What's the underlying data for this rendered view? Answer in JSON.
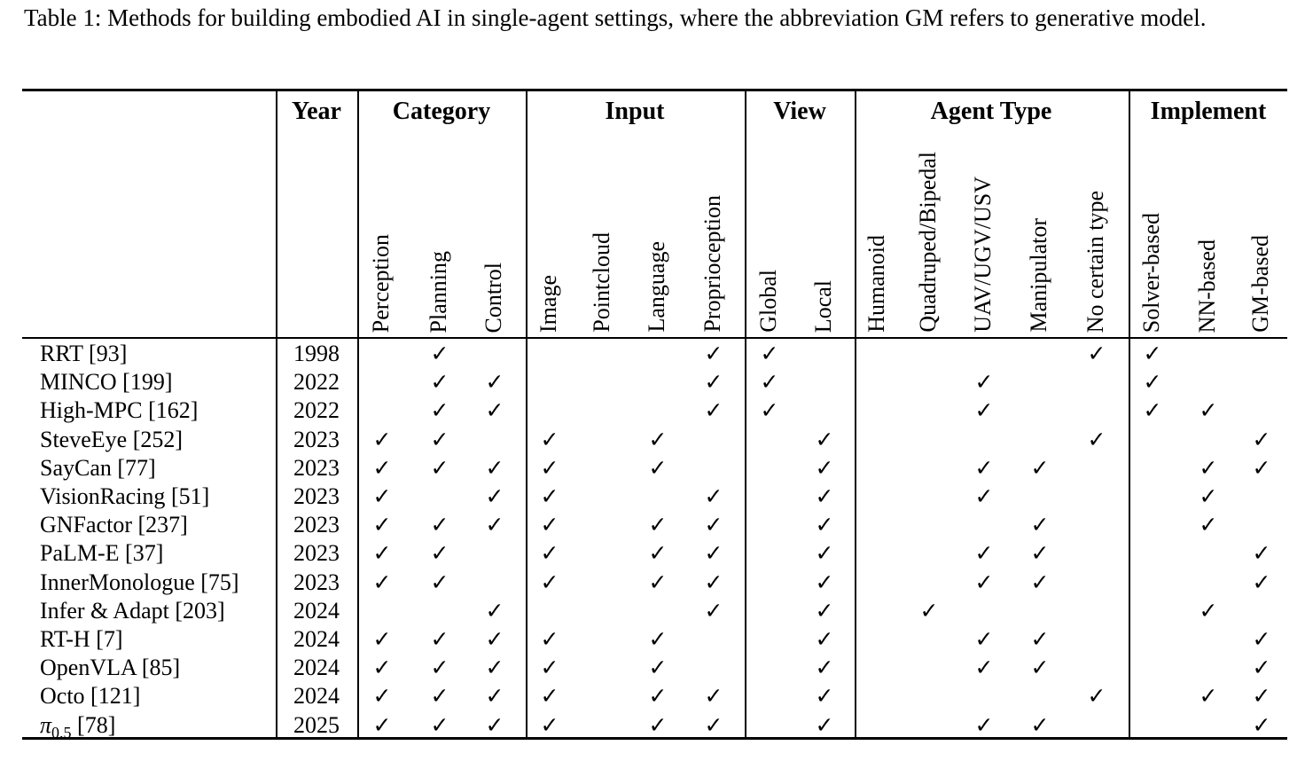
{
  "caption": "Table 1: Methods for building embodied AI in single-agent settings, where the abbreviation GM refers to generative model.",
  "table": {
    "check_glyph": "✓",
    "header": {
      "year_label": "Year",
      "groups": [
        {
          "label": "Category",
          "columns": [
            "Perception",
            "Planning",
            "Control"
          ]
        },
        {
          "label": "Input",
          "columns": [
            "Image",
            "Pointcloud",
            "Language",
            "Proprioception"
          ]
        },
        {
          "label": "View",
          "columns": [
            "Global",
            "Local"
          ]
        },
        {
          "label": "Agent Type",
          "columns": [
            "Humanoid",
            "Quadruped/Bipedal",
            "UAV/UGV/USV",
            "Manipulator",
            "No certain type"
          ]
        },
        {
          "label": "Implement",
          "columns": [
            "Solver-based",
            "NN-based",
            "GM-based"
          ]
        }
      ]
    },
    "column_order": [
      "Perception",
      "Planning",
      "Control",
      "Image",
      "Pointcloud",
      "Language",
      "Proprioception",
      "Global",
      "Local",
      "Humanoid",
      "Quadruped/Bipedal",
      "UAV/UGV/USV",
      "Manipulator",
      "No certain type",
      "Solver-based",
      "NN-based",
      "GM-based"
    ],
    "rows": [
      {
        "method": "RRT",
        "method_sub": "",
        "method_italic": false,
        "ref": "[93]",
        "year": "1998",
        "checks": [
          0,
          1,
          0,
          0,
          0,
          0,
          1,
          1,
          0,
          0,
          0,
          0,
          0,
          1,
          1,
          0,
          0
        ]
      },
      {
        "method": "MINCO",
        "method_sub": "",
        "method_italic": false,
        "ref": "[199]",
        "year": "2022",
        "checks": [
          0,
          1,
          1,
          0,
          0,
          0,
          1,
          1,
          0,
          0,
          0,
          1,
          0,
          0,
          1,
          0,
          0
        ]
      },
      {
        "method": "High-MPC",
        "method_sub": "",
        "method_italic": false,
        "ref": "[162]",
        "year": "2022",
        "checks": [
          0,
          1,
          1,
          0,
          0,
          0,
          1,
          1,
          0,
          0,
          0,
          1,
          0,
          0,
          1,
          1,
          0
        ]
      },
      {
        "method": "SteveEye",
        "method_sub": "",
        "method_italic": false,
        "ref": "[252]",
        "year": "2023",
        "checks": [
          1,
          1,
          0,
          1,
          0,
          1,
          0,
          0,
          1,
          0,
          0,
          0,
          0,
          1,
          0,
          0,
          1
        ]
      },
      {
        "method": "SayCan",
        "method_sub": "",
        "method_italic": false,
        "ref": "[77]",
        "year": "2023",
        "checks": [
          1,
          1,
          1,
          1,
          0,
          1,
          0,
          0,
          1,
          0,
          0,
          1,
          1,
          0,
          0,
          1,
          1
        ]
      },
      {
        "method": "VisionRacing",
        "method_sub": "",
        "method_italic": false,
        "ref": "[51]",
        "year": "2023",
        "checks": [
          1,
          0,
          1,
          1,
          0,
          0,
          1,
          0,
          1,
          0,
          0,
          1,
          0,
          0,
          0,
          1,
          0
        ]
      },
      {
        "method": "GNFactor",
        "method_sub": "",
        "method_italic": false,
        "ref": "[237]",
        "year": "2023",
        "checks": [
          1,
          1,
          1,
          1,
          0,
          1,
          1,
          0,
          1,
          0,
          0,
          0,
          1,
          0,
          0,
          1,
          0
        ]
      },
      {
        "method": "PaLM-E",
        "method_sub": "",
        "method_italic": false,
        "ref": "[37]",
        "year": "2023",
        "checks": [
          1,
          1,
          0,
          1,
          0,
          1,
          1,
          0,
          1,
          0,
          0,
          1,
          1,
          0,
          0,
          0,
          1
        ]
      },
      {
        "method": "InnerMonologue",
        "method_sub": "",
        "method_italic": false,
        "ref": "[75]",
        "year": "2023",
        "checks": [
          1,
          1,
          0,
          1,
          0,
          1,
          1,
          0,
          1,
          0,
          0,
          1,
          1,
          0,
          0,
          0,
          1
        ]
      },
      {
        "method": "Infer & Adapt",
        "method_sub": "",
        "method_italic": false,
        "ref": "[203]",
        "year": "2024",
        "checks": [
          0,
          0,
          1,
          0,
          0,
          0,
          1,
          0,
          1,
          0,
          1,
          0,
          0,
          0,
          0,
          1,
          0
        ]
      },
      {
        "method": "RT-H",
        "method_sub": "",
        "method_italic": false,
        "ref": "[7]",
        "year": "2024",
        "checks": [
          1,
          1,
          1,
          1,
          0,
          1,
          0,
          0,
          1,
          0,
          0,
          1,
          1,
          0,
          0,
          0,
          1
        ]
      },
      {
        "method": "OpenVLA",
        "method_sub": "",
        "method_italic": false,
        "ref": "[85]",
        "year": "2024",
        "checks": [
          1,
          1,
          1,
          1,
          0,
          1,
          0,
          0,
          1,
          0,
          0,
          1,
          1,
          0,
          0,
          0,
          1
        ]
      },
      {
        "method": "Octo",
        "method_sub": "",
        "method_italic": false,
        "ref": "[121]",
        "year": "2024",
        "checks": [
          1,
          1,
          1,
          1,
          0,
          1,
          1,
          0,
          1,
          0,
          0,
          0,
          0,
          1,
          0,
          1,
          1
        ]
      },
      {
        "method": "π",
        "method_sub": "0.5",
        "method_italic": true,
        "ref": "[78]",
        "year": "2025",
        "checks": [
          1,
          1,
          1,
          1,
          0,
          1,
          1,
          0,
          1,
          0,
          0,
          1,
          1,
          0,
          0,
          0,
          1
        ]
      }
    ]
  }
}
